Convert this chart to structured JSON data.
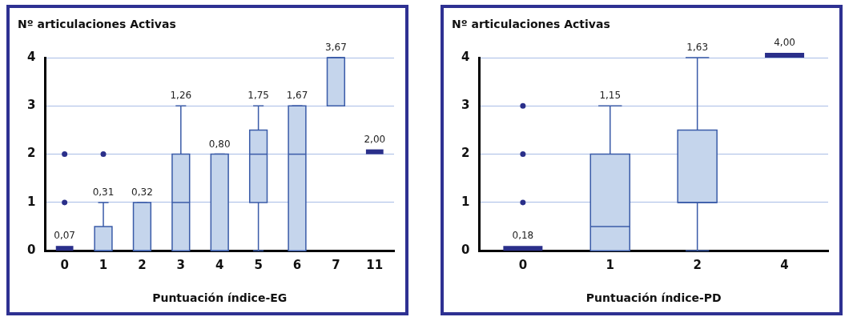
{
  "chart_data": [
    {
      "type": "box",
      "ylabel": "Nº articulaciones Activas",
      "xlabel": "Puntuación índice-EG",
      "categories": [
        "0",
        "1",
        "2",
        "3",
        "4",
        "5",
        "6",
        "7",
        "11"
      ],
      "ylim": [
        0,
        4
      ],
      "yticks": [
        0,
        1,
        2,
        3,
        4
      ],
      "grid": "y",
      "legend": false,
      "colors": [
        "#2a2f8a",
        "#c5d5ec",
        "#c5d5ec",
        "#c5d5ec",
        "#c5d5ec",
        "#c5d5ec",
        "#c5d5ec",
        "#c5d5ec",
        "#2a2f8a"
      ],
      "boxes": [
        {
          "low": 0,
          "q1": 0,
          "median": 0,
          "q3": 0,
          "high": 0,
          "outliers": [
            1,
            2
          ]
        },
        {
          "low": 0,
          "q1": 0,
          "median": 0,
          "q3": 0.5,
          "high": 1,
          "outliers": [
            2
          ]
        },
        {
          "low": 0,
          "q1": 0,
          "median": 0,
          "q3": 1,
          "high": 1
        },
        {
          "low": 0,
          "q1": 0,
          "median": 1,
          "q3": 2,
          "high": 3
        },
        {
          "low": 0,
          "q1": 0,
          "median": 0,
          "q3": 2,
          "high": 2
        },
        {
          "low": 0,
          "q1": 1,
          "median": 2,
          "q3": 2.5,
          "high": 3
        },
        {
          "low": 0,
          "q1": 0,
          "median": 2,
          "q3": 3,
          "high": 3
        },
        {
          "low": 3,
          "q1": 3,
          "median": 4,
          "q3": 4,
          "high": 4
        },
        {
          "low": 2,
          "q1": 2,
          "median": 2,
          "q3": 2,
          "high": 2
        }
      ],
      "annotations": [
        {
          "text": "0,07",
          "x": "0",
          "y": 0
        },
        {
          "text": "0,31",
          "x": "1",
          "y": 1
        },
        {
          "text": "0,32",
          "x": "2",
          "y": 1
        },
        {
          "text": "1,26",
          "x": "3",
          "y": 3
        },
        {
          "text": "0,80",
          "x": "4",
          "y": 2
        },
        {
          "text": "1,75",
          "x": "5",
          "y": 3
        },
        {
          "text": "1,67",
          "x": "6",
          "y": 3
        },
        {
          "text": "3,67",
          "x": "7",
          "y": 4
        },
        {
          "text": "2,00",
          "x": "11",
          "y": 2
        }
      ]
    },
    {
      "type": "box",
      "ylabel": "Nº articulaciones Activas",
      "xlabel": "Puntuación índice-PD",
      "categories": [
        "0",
        "1",
        "2",
        "4"
      ],
      "ylim": [
        0,
        4
      ],
      "yticks": [
        0,
        1,
        2,
        3,
        4
      ],
      "grid": "y",
      "legend": false,
      "colors": [
        "#2a2f8a",
        "#c5d5ec",
        "#c5d5ec",
        "#2a2f8a"
      ],
      "boxes": [
        {
          "low": 0,
          "q1": 0,
          "median": 0,
          "q3": 0,
          "high": 0,
          "outliers": [
            1,
            2,
            3
          ]
        },
        {
          "low": 0,
          "q1": 0,
          "median": 0.5,
          "q3": 2,
          "high": 3
        },
        {
          "low": 0,
          "q1": 1,
          "median": 1,
          "q3": 2.5,
          "high": 4
        },
        {
          "low": 4,
          "q1": 4,
          "median": 4,
          "q3": 4,
          "high": 4
        }
      ],
      "annotations": [
        {
          "text": "0,18",
          "x": "0",
          "y": 0
        },
        {
          "text": "1,15",
          "x": "1",
          "y": 3
        },
        {
          "text": "1,63",
          "x": "2",
          "y": 4
        },
        {
          "text": "4,00",
          "x": "4",
          "y": 4
        }
      ]
    }
  ]
}
